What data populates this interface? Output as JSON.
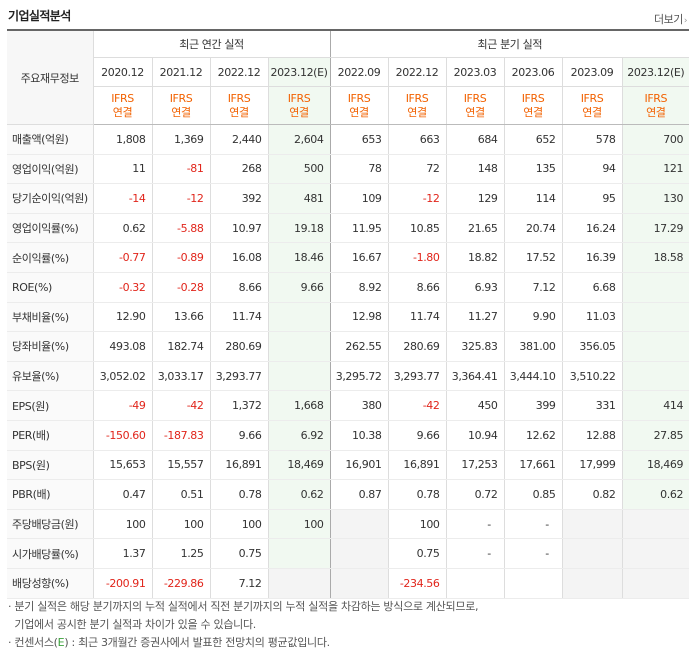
{
  "header": {
    "title": "기업실적분석",
    "more_label": "더보기",
    "more_arrow": "›"
  },
  "table": {
    "corner_label": "주요재무정보",
    "annual_group": "최근 연간 실적",
    "quarter_group": "최근 분기 실적",
    "periods": [
      "2020.12",
      "2021.12",
      "2022.12",
      "2023.12(E)",
      "2022.09",
      "2022.12",
      "2023.03",
      "2023.06",
      "2023.09",
      "2023.12(E)"
    ],
    "basis_top": "IFRS",
    "basis_bottom": "연결",
    "rows": [
      {
        "label": "매출액(억원)",
        "values": [
          "1,808",
          "1,369",
          "2,440",
          "2,604",
          "653",
          "663",
          "684",
          "652",
          "578",
          "700"
        ]
      },
      {
        "label": "영업이익(억원)",
        "values": [
          "11",
          "-81",
          "268",
          "500",
          "78",
          "72",
          "148",
          "135",
          "94",
          "121"
        ]
      },
      {
        "label": "당기순이익(억원)",
        "values": [
          "-14",
          "-12",
          "392",
          "481",
          "109",
          "-12",
          "129",
          "114",
          "95",
          "130"
        ]
      },
      {
        "label": "영업이익률(%)",
        "values": [
          "0.62",
          "-5.88",
          "10.97",
          "19.18",
          "11.95",
          "10.85",
          "21.65",
          "20.74",
          "16.24",
          "17.29"
        ]
      },
      {
        "label": "순이익률(%)",
        "values": [
          "-0.77",
          "-0.89",
          "16.08",
          "18.46",
          "16.67",
          "-1.80",
          "18.82",
          "17.52",
          "16.39",
          "18.58"
        ]
      },
      {
        "label": "ROE(%)",
        "values": [
          "-0.32",
          "-0.28",
          "8.66",
          "9.66",
          "8.92",
          "8.66",
          "6.93",
          "7.12",
          "6.68",
          ""
        ]
      },
      {
        "label": "부채비율(%)",
        "values": [
          "12.90",
          "13.66",
          "11.74",
          "",
          "12.98",
          "11.74",
          "11.27",
          "9.90",
          "11.03",
          ""
        ]
      },
      {
        "label": "당좌비율(%)",
        "values": [
          "493.08",
          "182.74",
          "280.69",
          "",
          "262.55",
          "280.69",
          "325.83",
          "381.00",
          "356.05",
          ""
        ]
      },
      {
        "label": "유보율(%)",
        "values": [
          "3,052.02",
          "3,033.17",
          "3,293.77",
          "",
          "3,295.72",
          "3,293.77",
          "3,364.41",
          "3,444.10",
          "3,510.22",
          ""
        ]
      },
      {
        "label": "EPS(원)",
        "values": [
          "-49",
          "-42",
          "1,372",
          "1,668",
          "380",
          "-42",
          "450",
          "399",
          "331",
          "414"
        ]
      },
      {
        "label": "PER(배)",
        "values": [
          "-150.60",
          "-187.83",
          "9.66",
          "6.92",
          "10.38",
          "9.66",
          "10.94",
          "12.62",
          "12.88",
          "27.85"
        ]
      },
      {
        "label": "BPS(원)",
        "values": [
          "15,653",
          "15,557",
          "16,891",
          "18,469",
          "16,901",
          "16,891",
          "17,253",
          "17,661",
          "17,999",
          "18,469"
        ]
      },
      {
        "label": "PBR(배)",
        "values": [
          "0.47",
          "0.51",
          "0.78",
          "0.62",
          "0.87",
          "0.78",
          "0.72",
          "0.85",
          "0.82",
          "0.62"
        ]
      },
      {
        "label": "주당배당금(원)",
        "values": [
          "100",
          "100",
          "100",
          "100",
          "",
          "100",
          "-",
          "-",
          "",
          ""
        ]
      },
      {
        "label": "시가배당률(%)",
        "values": [
          "1.37",
          "1.25",
          "0.75",
          "",
          "",
          "0.75",
          "-",
          "-",
          "",
          ""
        ]
      },
      {
        "label": "배당성향(%)",
        "values": [
          "-200.91",
          "-229.86",
          "7.12",
          "",
          "",
          "-234.56",
          "",
          "",
          "",
          ""
        ]
      }
    ]
  },
  "notes": {
    "line1": "· 분기 실적은 해당 분기까지의 누적 실적에서 직전 분기까지의 누적 실적을 차감하는 방식으로 계산되므로,",
    "line2": "  기업에서 공시한 분기 실적과 차이가 있을 수 있습니다.",
    "line3_prefix": "· 컨센서스(",
    "line3_mark": "E",
    "line3_suffix": ") : 최근 3개월간 증권사에서 발표한 전망치의 평균값입니다."
  },
  "colors": {
    "negative": "#e1251b",
    "basis": "#f26100",
    "estimate_bg": "#f1f9f1",
    "estimate_mark": "#3ba13b"
  }
}
